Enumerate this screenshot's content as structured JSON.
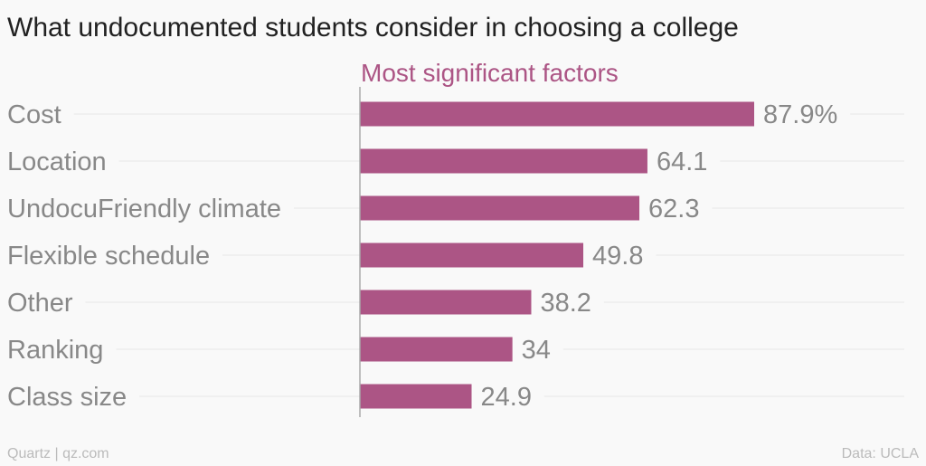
{
  "chart_data": {
    "type": "bar",
    "orientation": "horizontal",
    "title": "What undocumented students consider in choosing a college",
    "series_name": "Most significant factors",
    "categories": [
      "Cost",
      "Location",
      "UndocuFriendly climate",
      "Flexible schedule",
      "Other",
      "Ranking",
      "Class size"
    ],
    "values": [
      87.9,
      64.1,
      62.3,
      49.8,
      38.2,
      34,
      24.9
    ],
    "value_labels": [
      "87.9%",
      "64.1",
      "62.3",
      "49.8",
      "38.2",
      "34",
      "24.9"
    ],
    "xlim": [
      0,
      100
    ],
    "grid": true
  },
  "footer": {
    "source_left": "Quartz | qz.com",
    "source_right": "Data: UCLA"
  },
  "colors": {
    "bar": "#ac5585",
    "subtitle": "#ac5585"
  }
}
